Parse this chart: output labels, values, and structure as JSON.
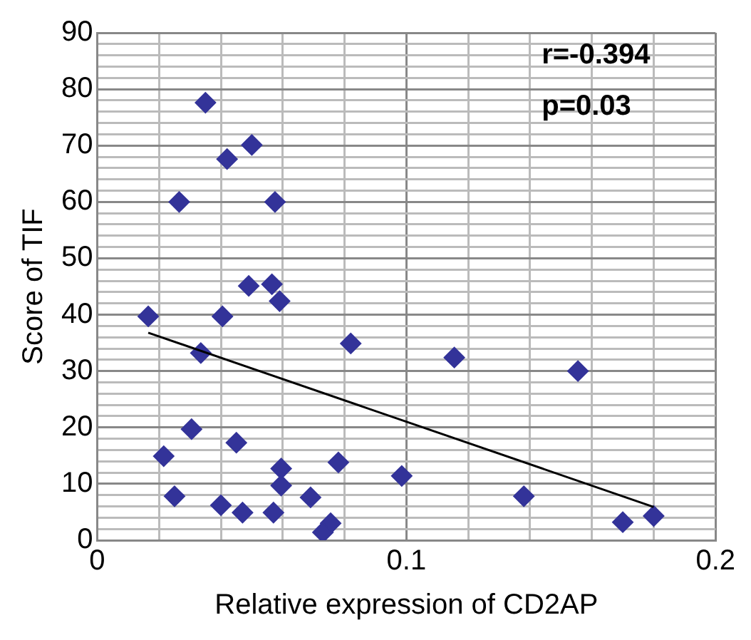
{
  "chart_data": {
    "type": "scatter",
    "xlabel": "Relative expression of CD2AP",
    "ylabel": "Score of TIF",
    "x": [
      0.035,
      0.05,
      0.042,
      0.0265,
      0.0575,
      0.049,
      0.0565,
      0.059,
      0.0165,
      0.0405,
      0.0335,
      0.082,
      0.0305,
      0.045,
      0.0215,
      0.0595,
      0.078,
      0.0985,
      0.0595,
      0.025,
      0.069,
      0.04,
      0.047,
      0.057,
      0.0755,
      0.073,
      0.1155,
      0.1555,
      0.138,
      0.17,
      0.18
    ],
    "series": [
      {
        "type": "scatter",
        "color": "#333399",
        "marker": "diamond",
        "values": [
          77.6,
          70.1,
          67.6,
          60,
          60,
          45.1,
          45.4,
          42.4,
          39.7,
          39.7,
          33.2,
          34.9,
          19.7,
          17.3,
          14.9,
          12.7,
          13.8,
          11.4,
          9.7,
          7.8,
          7.6,
          6.2,
          4.9,
          4.9,
          3.0,
          1.4,
          32.4,
          30,
          7.8,
          3.2,
          4.3
        ]
      },
      {
        "type": "line",
        "color": "#000000",
        "marker": "none",
        "x": [
          0.0165,
          0.18
        ],
        "values": [
          36.8,
          5.9
        ]
      }
    ],
    "xlim": [
      0,
      0.2
    ],
    "xticks": [
      0,
      {
        "value": 0.02,
        "label": null
      },
      {
        "value": 0.04,
        "label": null
      },
      {
        "value": 0.06,
        "label": null
      },
      {
        "value": 0.08,
        "label": null
      },
      0.1,
      {
        "value": 0.12,
        "label": null
      },
      {
        "value": 0.14,
        "label": null
      },
      {
        "value": 0.16,
        "label": null
      },
      {
        "value": 0.18,
        "label": null
      },
      0.2
    ],
    "ylim": [
      0,
      90
    ],
    "yticks": [
      0,
      {
        "value": 2,
        "label": null
      },
      {
        "value": 4,
        "label": null
      },
      {
        "value": 6,
        "label": null
      },
      {
        "value": 8,
        "label": null
      },
      10,
      {
        "value": 12,
        "label": null
      },
      {
        "value": 14,
        "label": null
      },
      {
        "value": 16,
        "label": null
      },
      {
        "value": 18,
        "label": null
      },
      20,
      {
        "value": 22,
        "label": null
      },
      {
        "value": 24,
        "label": null
      },
      {
        "value": 26,
        "label": null
      },
      {
        "value": 28,
        "label": null
      },
      30,
      {
        "value": 32,
        "label": null
      },
      {
        "value": 34,
        "label": null
      },
      {
        "value": 36,
        "label": null
      },
      {
        "value": 38,
        "label": null
      },
      40,
      {
        "value": 42,
        "label": null
      },
      {
        "value": 44,
        "label": null
      },
      {
        "value": 46,
        "label": null
      },
      {
        "value": 48,
        "label": null
      },
      50,
      {
        "value": 52,
        "label": null
      },
      {
        "value": 54,
        "label": null
      },
      {
        "value": 56,
        "label": null
      },
      {
        "value": 58,
        "label": null
      },
      60,
      {
        "value": 62,
        "label": null
      },
      {
        "value": 64,
        "label": null
      },
      {
        "value": 66,
        "label": null
      },
      {
        "value": 68,
        "label": null
      },
      70,
      {
        "value": 72,
        "label": null
      },
      {
        "value": 74,
        "label": null
      },
      {
        "value": 76,
        "label": null
      },
      {
        "value": 78,
        "label": null
      },
      80,
      {
        "value": 82,
        "label": null
      },
      {
        "value": 84,
        "label": null
      },
      {
        "value": 86,
        "label": null
      },
      {
        "value": 88,
        "label": null
      },
      90
    ],
    "grid": true,
    "legend": false,
    "annotations": [
      "r=-0.394",
      "p=0.03"
    ]
  }
}
